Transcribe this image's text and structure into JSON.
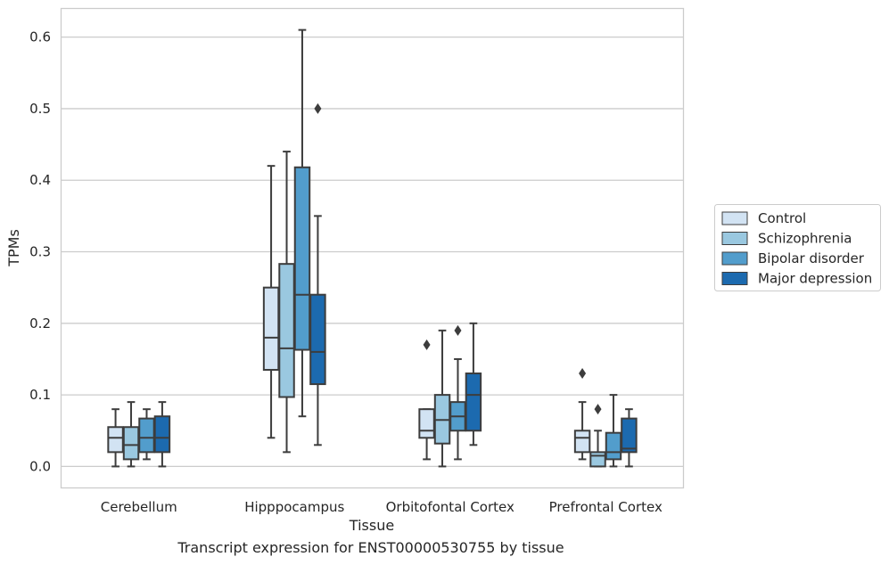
{
  "caption": "Transcript expression for ENST00000530755 by tissue",
  "chart_data": {
    "type": "boxplot",
    "xlabel": "Tissue",
    "ylabel": "TPMs",
    "ylim": [
      -0.03,
      0.64
    ],
    "yticks": [
      "0.0",
      "0.1",
      "0.2",
      "0.3",
      "0.4",
      "0.5",
      "0.6"
    ],
    "grid": true,
    "legend_position": "right",
    "categories": [
      "Cerebellum",
      "Hipppocampus",
      "Orbitofontal Cortex",
      "Prefrontal Cortex"
    ],
    "series": [
      {
        "name": "Control",
        "color": "#d2e3f3",
        "boxes": [
          {
            "whislo": 0.0,
            "q1": 0.02,
            "med": 0.04,
            "q3": 0.055,
            "whishi": 0.08,
            "fliers": []
          },
          {
            "whislo": 0.04,
            "q1": 0.135,
            "med": 0.18,
            "q3": 0.25,
            "whishi": 0.42,
            "fliers": []
          },
          {
            "whislo": 0.01,
            "q1": 0.04,
            "med": 0.05,
            "q3": 0.08,
            "whishi": 0.08,
            "fliers": [
              0.17
            ]
          },
          {
            "whislo": 0.01,
            "q1": 0.02,
            "med": 0.04,
            "q3": 0.05,
            "whishi": 0.09,
            "fliers": [
              0.13
            ]
          }
        ]
      },
      {
        "name": "Schizophrenia",
        "color": "#9ac8e0",
        "boxes": [
          {
            "whislo": 0.0,
            "q1": 0.01,
            "med": 0.03,
            "q3": 0.055,
            "whishi": 0.09,
            "fliers": []
          },
          {
            "whislo": 0.02,
            "q1": 0.097,
            "med": 0.165,
            "q3": 0.283,
            "whishi": 0.44,
            "fliers": []
          },
          {
            "whislo": 0.0,
            "q1": 0.032,
            "med": 0.065,
            "q3": 0.1,
            "whishi": 0.19,
            "fliers": []
          },
          {
            "whislo": 0.0,
            "q1": 0.0,
            "med": 0.015,
            "q3": 0.02,
            "whishi": 0.05,
            "fliers": [
              0.08
            ]
          }
        ]
      },
      {
        "name": "Bipolar disorder",
        "color": "#529dcc",
        "boxes": [
          {
            "whislo": 0.01,
            "q1": 0.02,
            "med": 0.04,
            "q3": 0.067,
            "whishi": 0.08,
            "fliers": []
          },
          {
            "whislo": 0.07,
            "q1": 0.163,
            "med": 0.24,
            "q3": 0.418,
            "whishi": 0.61,
            "fliers": []
          },
          {
            "whislo": 0.01,
            "q1": 0.05,
            "med": 0.07,
            "q3": 0.09,
            "whishi": 0.15,
            "fliers": [
              0.19
            ]
          },
          {
            "whislo": 0.0,
            "q1": 0.01,
            "med": 0.02,
            "q3": 0.047,
            "whishi": 0.1,
            "fliers": []
          }
        ]
      },
      {
        "name": "Major depression",
        "color": "#1c6aaf",
        "boxes": [
          {
            "whislo": 0.0,
            "q1": 0.02,
            "med": 0.04,
            "q3": 0.07,
            "whishi": 0.09,
            "fliers": []
          },
          {
            "whislo": 0.03,
            "q1": 0.115,
            "med": 0.16,
            "q3": 0.24,
            "whishi": 0.35,
            "fliers": [
              0.5
            ]
          },
          {
            "whislo": 0.03,
            "q1": 0.05,
            "med": 0.1,
            "q3": 0.13,
            "whishi": 0.2,
            "fliers": []
          },
          {
            "whislo": 0.0,
            "q1": 0.02,
            "med": 0.025,
            "q3": 0.067,
            "whishi": 0.08,
            "fliers": []
          }
        ]
      }
    ]
  }
}
